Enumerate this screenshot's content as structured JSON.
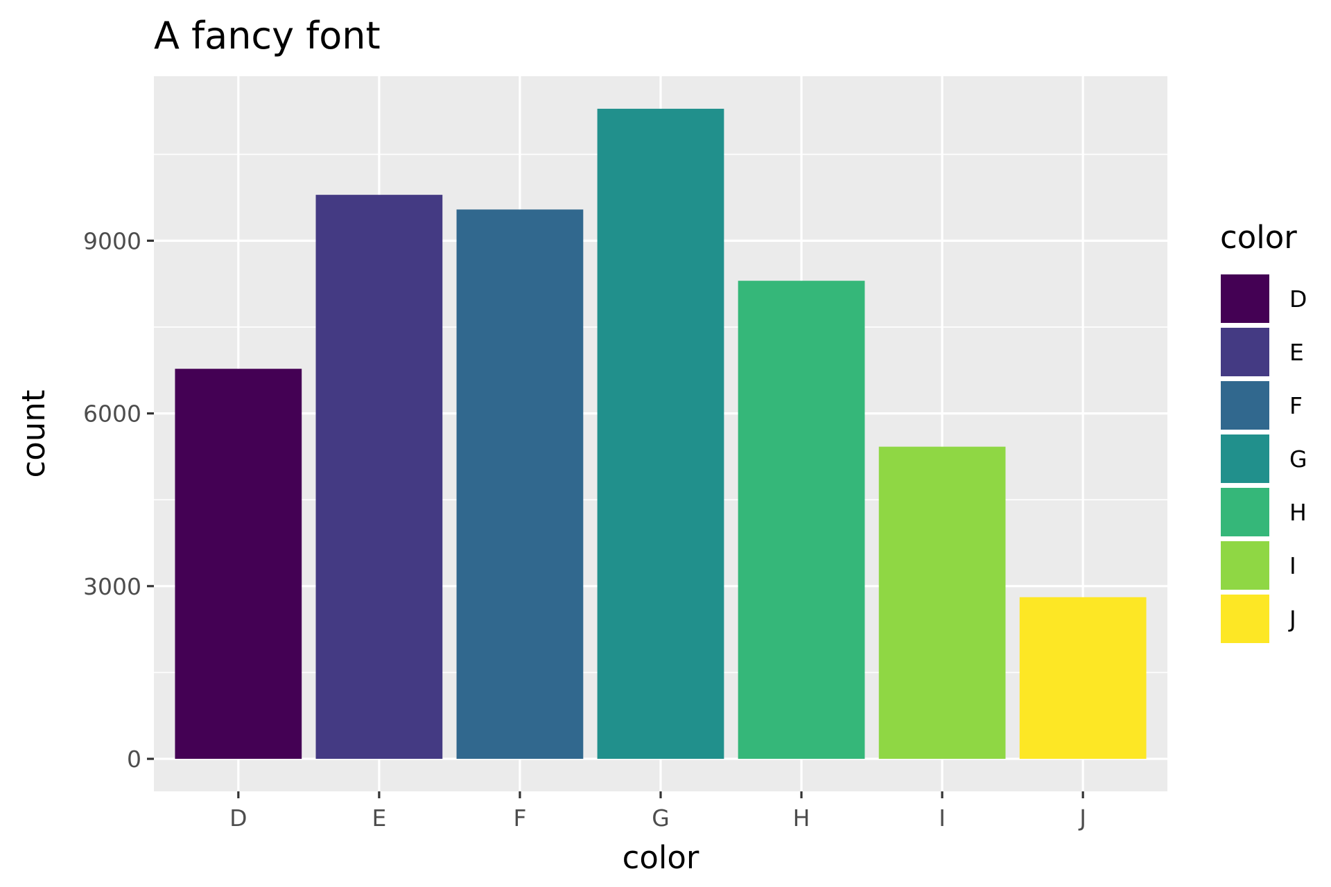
{
  "chart_data": {
    "type": "bar",
    "title": "A fancy font",
    "xlabel": "color",
    "ylabel": "count",
    "categories": [
      "D",
      "E",
      "F",
      "G",
      "H",
      "I",
      "J"
    ],
    "values": [
      6775,
      9797,
      9542,
      11292,
      8304,
      5422,
      2808
    ],
    "colors": [
      "#440154",
      "#443A83",
      "#31688E",
      "#21908C",
      "#35B779",
      "#8FD744",
      "#FDE725"
    ],
    "yticks": [
      0,
      3000,
      6000,
      9000
    ],
    "ylim": [
      -565,
      11857
    ],
    "legend": {
      "title": "color",
      "position": "right"
    },
    "panel_background": "#EBEBEB",
    "grid_color": "#FFFFFF",
    "grid": true
  }
}
